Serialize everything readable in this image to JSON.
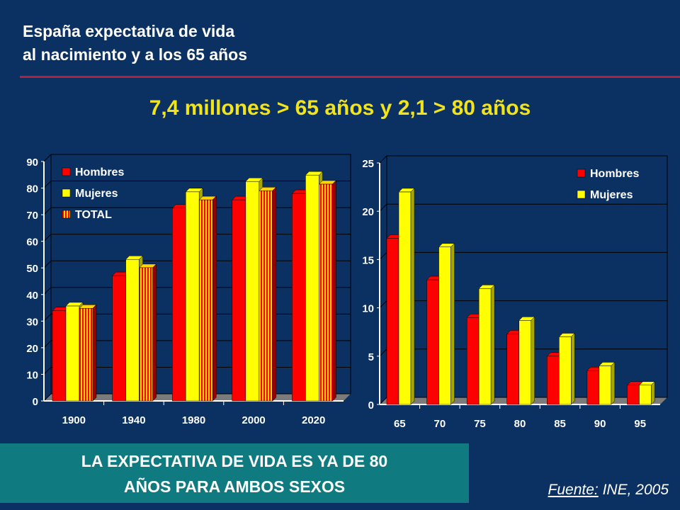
{
  "header": {
    "title_line1": "España expectativa de vida",
    "title_line2": "al nacimiento y a los 65 años",
    "subtitle": "7,4 millones > 65 años  y 2,1 > 80 años"
  },
  "colors": {
    "background": "#0B3163",
    "rule": "#B2223C",
    "subtitle": "#F2E41A",
    "hombres": "#FF0000",
    "mujeres": "#FFFF00",
    "total_a": "#FF0000",
    "total_b": "#FFD400",
    "banner": "#0F7B80"
  },
  "chart_data": [
    {
      "type": "bar",
      "categories": [
        "1900",
        "1940",
        "1980",
        "2000",
        "2020"
      ],
      "series": [
        {
          "name": "Hombres",
          "values": [
            33.9,
            47.1,
            72.5,
            75.6,
            78.0
          ]
        },
        {
          "name": "Mujeres",
          "values": [
            35.7,
            53.2,
            78.6,
            82.5,
            84.9
          ]
        },
        {
          "name": "TOTAL",
          "values": [
            34.8,
            50.1,
            75.6,
            79.0,
            81.5
          ]
        }
      ],
      "yticks": [
        "0",
        "10",
        "20",
        "30",
        "40",
        "50",
        "60",
        "70",
        "80",
        "90"
      ],
      "ylim": [
        0,
        90
      ],
      "grid": true,
      "legend": "top-left",
      "three_d": true
    },
    {
      "type": "bar",
      "categories": [
        "65",
        "70",
        "75",
        "80",
        "85",
        "90",
        "95"
      ],
      "series": [
        {
          "name": "Hombres",
          "values": [
            17.2,
            12.9,
            9.0,
            7.3,
            5.0,
            3.5,
            2.0
          ]
        },
        {
          "name": "Mujeres",
          "values": [
            22.0,
            16.3,
            12.0,
            8.7,
            7.0,
            4.0,
            2.0
          ]
        }
      ],
      "yticks": [
        "0",
        "5",
        "10",
        "15",
        "20",
        "25"
      ],
      "ylim": [
        0,
        25
      ],
      "grid": true,
      "legend": "top-right",
      "three_d": true
    }
  ],
  "banner": {
    "line1": "LA EXPECTATIVA DE VIDA ES YA DE 80",
    "line2": "AÑOS PARA AMBOS SEXOS"
  },
  "source": {
    "label": "Fuente:",
    "text": " INE, 2005"
  }
}
